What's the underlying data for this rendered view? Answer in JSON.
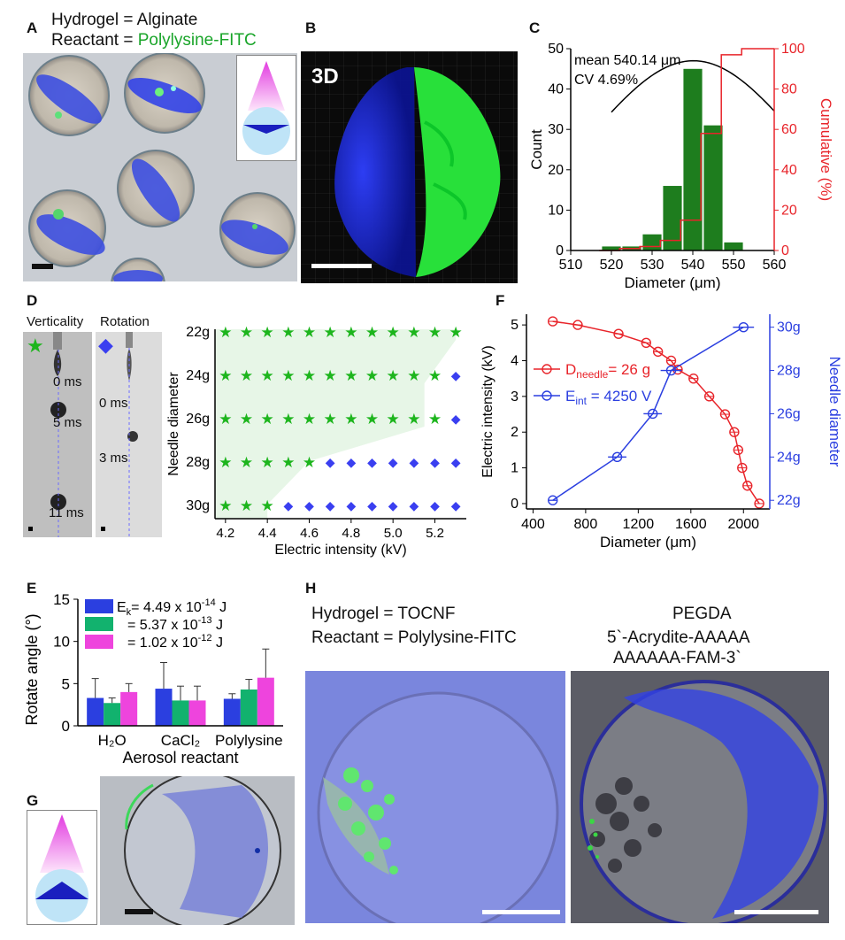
{
  "panels": {
    "A": "A",
    "B": "B",
    "C": "C",
    "D": "D",
    "E": "E",
    "F": "F",
    "G": "G",
    "H": "H"
  },
  "panelA": {
    "line1": "Hydrogel = Alginate",
    "line2_prefix": "Reactant = ",
    "line2_highlight": "Polylysine-FITC",
    "highlight_color": "#1aa52a"
  },
  "panelB": {
    "label_3d": "3D"
  },
  "panelD": {
    "verticality": "Verticality",
    "rotation": "Rotation",
    "t_vert": [
      "0 ms",
      "5 ms",
      "11 ms"
    ],
    "t_rot": [
      "0 ms",
      "3 ms"
    ]
  },
  "panelH": {
    "left_line1": "Hydrogel = TOCNF",
    "left_line2": "Reactant = Polylysine-FITC",
    "right_line1": "PEGDA",
    "right_line2": "5`-Acrydite-AAAAA",
    "right_line3": "AAAAAA-FAM-3`"
  },
  "colors": {
    "green": "#1e9c1e",
    "blue": "#2b3fe0",
    "red": "#e8242a",
    "pink": "#ee44dd",
    "teal": "#12b26e"
  },
  "chart_data": [
    {
      "id": "C",
      "type": "bar",
      "bins": [
        520,
        525,
        530,
        535,
        540,
        545,
        550
      ],
      "counts": [
        1,
        1,
        4,
        16,
        45,
        31,
        2
      ],
      "fit_peak": 47,
      "cumulative_x": [
        517,
        522,
        527,
        532,
        537,
        542,
        547,
        552
      ],
      "cumulative_y": [
        0,
        1,
        2,
        5,
        15,
        58,
        97,
        100
      ],
      "annotations": [
        "mean 540.14 μm",
        "CV 4.69%"
      ],
      "xlabel": "Diameter (μm)",
      "ylabel": "Count",
      "y2label": "Cumulative (%)",
      "xlim": [
        510,
        560
      ],
      "ylim": [
        0,
        50
      ],
      "y2lim": [
        0,
        100
      ],
      "xticks": [
        "510",
        "520",
        "530",
        "540",
        "550",
        "560"
      ],
      "yticks": [
        "0",
        "10",
        "20",
        "30",
        "40",
        "50"
      ],
      "y2ticks": [
        "0",
        "20",
        "40",
        "60",
        "80",
        "100"
      ]
    },
    {
      "id": "D",
      "type": "scatter",
      "xlabel": "Electric intensity (kV)",
      "ylabel": "Needle diameter",
      "xticks": [
        "4.2",
        "4.4",
        "4.6",
        "4.8",
        "5.0",
        "5.2"
      ],
      "yticks": [
        "22g",
        "24g",
        "26g",
        "28g",
        "30g"
      ],
      "x": [
        4.2,
        4.25,
        4.3,
        4.35,
        4.4,
        4.45,
        4.5,
        4.55,
        4.6,
        4.65,
        4.7,
        4.75,
        4.8,
        4.85,
        4.9,
        4.95,
        5.0,
        5.05,
        5.1,
        5.15,
        5.2,
        5.25,
        5.3
      ],
      "grid_x": [
        4.2,
        4.3,
        4.4,
        4.5,
        4.6,
        4.7,
        4.8,
        4.9,
        5.0,
        5.1,
        5.2,
        5.3
      ],
      "rows": [
        {
          "needle": "22g",
          "vertical_until": 5.3
        },
        {
          "needle": "24g",
          "vertical_until": 5.2
        },
        {
          "needle": "26g",
          "vertical_until": 5.2
        },
        {
          "needle": "28g",
          "vertical_until": 4.6
        },
        {
          "needle": "30g",
          "vertical_until": 4.4
        }
      ]
    },
    {
      "id": "E",
      "type": "bar",
      "categories": [
        "H₂O",
        "CaCl₂",
        "Polylysine"
      ],
      "series": [
        {
          "name": "E",
          "legend": "= 4.49 x 10",
          "exp": "-14",
          "unit": " J",
          "values": [
            3.3,
            4.4,
            3.2
          ],
          "errors": [
            2.3,
            3.1,
            0.6
          ]
        },
        {
          "name": "",
          "legend": "= 5.37 x 10",
          "exp": "-13",
          "unit": " J",
          "values": [
            2.7,
            3.0,
            4.3
          ],
          "errors": [
            0.6,
            1.7,
            1.2
          ]
        },
        {
          "name": "",
          "legend": "= 1.02 x 10",
          "exp": "-12",
          "unit": " J",
          "values": [
            4.0,
            3.0,
            5.7
          ],
          "errors": [
            1.0,
            1.7,
            3.4
          ]
        }
      ],
      "legend_prefix": "E",
      "legend_sub": "k",
      "xlabel": "Aerosol reactant",
      "ylabel": "Rotate angle (°)",
      "ylim": [
        0,
        15
      ],
      "yticks": [
        "0",
        "5",
        "10",
        "15"
      ]
    },
    {
      "id": "F",
      "type": "line",
      "xlabel": "Diameter (μm)",
      "ylabel": "Electric intensity (kV)",
      "y2label": "Needle diameter",
      "xticks": [
        "400",
        "800",
        "1200",
        "1600",
        "2000"
      ],
      "yticks": [
        "0",
        "1",
        "2",
        "3",
        "4",
        "5"
      ],
      "y2ticks": [
        "22g",
        "24g",
        "26g",
        "28g",
        "30g"
      ],
      "series": [
        {
          "name": "D",
          "name_sub": "needle",
          "name_suffix": "= 26 g",
          "x": [
            550,
            740,
            1050,
            1260,
            1350,
            1450,
            1500,
            1620,
            1740,
            1860,
            1930,
            1960,
            1990,
            2030,
            2120
          ],
          "y": [
            5.1,
            5.0,
            4.75,
            4.5,
            4.25,
            4.0,
            3.75,
            3.5,
            3.0,
            2.5,
            2.0,
            1.5,
            1.0,
            0.5,
            0.0
          ]
        },
        {
          "name": "E",
          "name_sub": "int",
          "name_suffix": "= 4250 V",
          "x": [
            550,
            1040,
            1310,
            1450,
            2000
          ],
          "y_needle": [
            22,
            24,
            26,
            28,
            30
          ],
          "xerr": [
            0,
            40,
            40,
            50,
            50
          ]
        }
      ]
    }
  ]
}
